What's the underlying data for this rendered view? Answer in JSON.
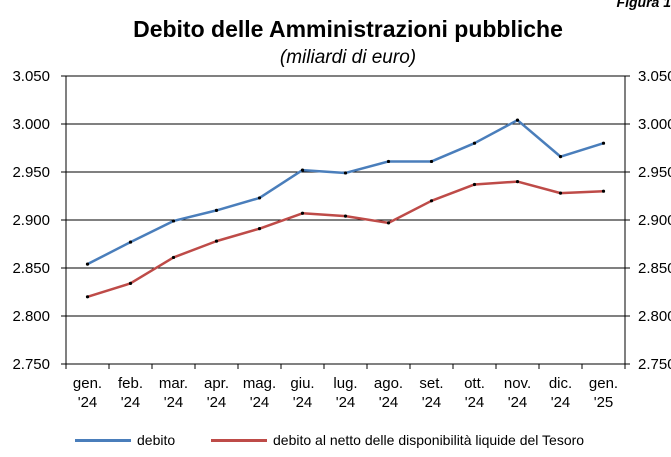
{
  "figure_label": "Figura 1",
  "chart_data": {
    "type": "line",
    "title": "Debito delle Amministrazioni pubbliche",
    "subtitle": "(miliardi di euro)",
    "categories": [
      [
        "gen.",
        "'24"
      ],
      [
        "feb.",
        "'24"
      ],
      [
        "mar.",
        "'24"
      ],
      [
        "apr.",
        "'24"
      ],
      [
        "mag.",
        "'24"
      ],
      [
        "giu.",
        "'24"
      ],
      [
        "lug.",
        "'24"
      ],
      [
        "ago.",
        "'24"
      ],
      [
        "set.",
        "'24"
      ],
      [
        "ott.",
        "'24"
      ],
      [
        "nov.",
        "'24"
      ],
      [
        "dic.",
        "'24"
      ],
      [
        "gen.",
        "'25"
      ]
    ],
    "ylim": [
      2750,
      3050
    ],
    "yticks": [
      2750,
      2800,
      2850,
      2900,
      2950,
      3000,
      3050
    ],
    "ytick_labels": [
      "2.750",
      "2.800",
      "2.850",
      "2.900",
      "2.950",
      "3.000",
      "3.050"
    ],
    "grid": true,
    "series": [
      {
        "name": "debito",
        "color": "#4a7ebb",
        "values": [
          2854,
          2877,
          2899,
          2910,
          2923,
          2952,
          2949,
          2961,
          2961,
          2980,
          3004,
          2966,
          2980
        ]
      },
      {
        "name": "debito al netto delle disponibilità liquide del Tesoro",
        "color": "#be4b48",
        "values": [
          2820,
          2834,
          2861,
          2878,
          2891,
          2907,
          2904,
          2897,
          2920,
          2937,
          2940,
          2928,
          2930
        ]
      }
    ],
    "legend_position": "bottom"
  }
}
